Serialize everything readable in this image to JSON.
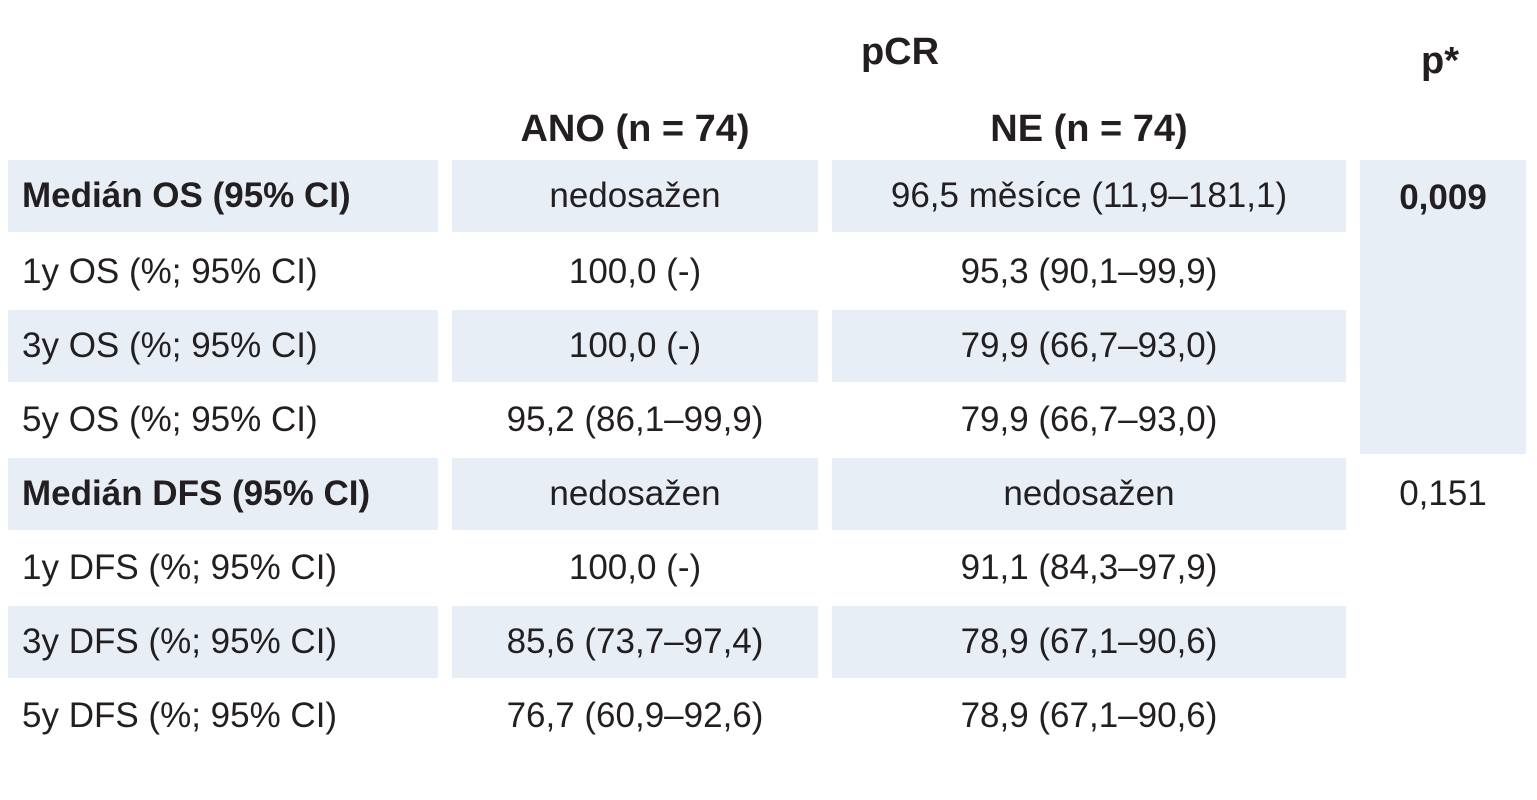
{
  "header": {
    "group_label": "pCR",
    "p_label": "p*",
    "col_ano": "ANO (n = 74)",
    "col_ne": "NE (n = 74)"
  },
  "rows": [
    {
      "label": "Medián OS (95% CI)",
      "ano": "nedosažen",
      "ne": "96,5 měsíce (11,9–181,1)"
    },
    {
      "label": "1y OS (%; 95% CI)",
      "ano": "100,0 (-)",
      "ne": "95,3 (90,1–99,9)"
    },
    {
      "label": "3y OS (%; 95% CI)",
      "ano": "100,0 (-)",
      "ne": "79,9 (66,7–93,0)"
    },
    {
      "label": "5y OS (%; 95% CI)",
      "ano": "95,2 (86,1–99,9)",
      "ne": "79,9 (66,7–93,0)"
    },
    {
      "label": "Medián DFS (95% CI)",
      "ano": "nedosažen",
      "ne": "nedosažen"
    },
    {
      "label": "1y DFS (%; 95% CI)",
      "ano": "100,0 (-)",
      "ne": "91,1 (84,3–97,9)"
    },
    {
      "label": "3y DFS (%; 95% CI)",
      "ano": "85,6 (73,7–97,4)",
      "ne": "78,9 (67,1–90,6)"
    },
    {
      "label": "5y DFS (%; 95% CI)",
      "ano": "76,7 (60,9–92,6)",
      "ne": "78,9 (67,1–90,6)"
    }
  ],
  "p_values": {
    "os": "0,009",
    "dfs": "0,151"
  },
  "colors": {
    "shade": "#e7eef6",
    "text": "#231f20"
  }
}
